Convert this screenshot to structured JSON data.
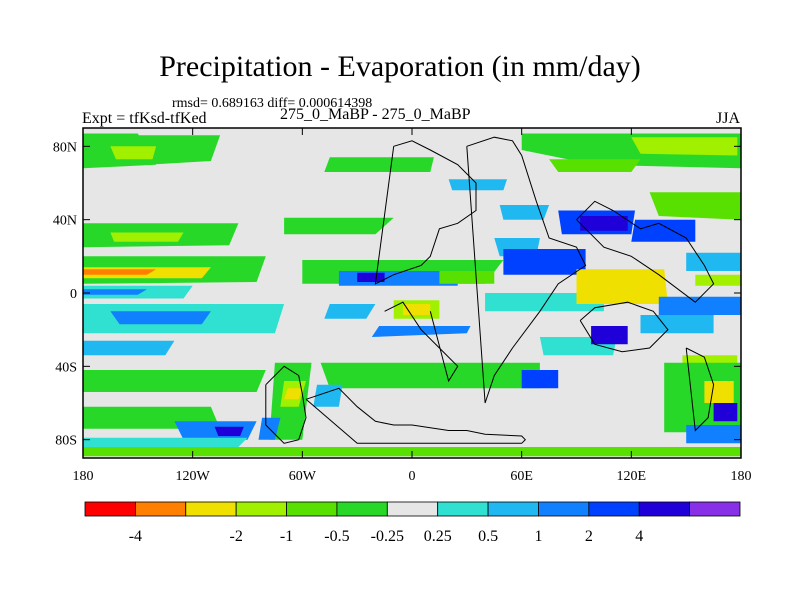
{
  "chart_data": {
    "type": "heatmap",
    "title": "Precipitation - Evaporation (in mm/day)",
    "stats": "rmsd= 0.689163 diff= 0.000614398",
    "left_label": "Expt = tfKsd-tfKed",
    "center_label": "275_0_MaBP - 275_0_MaBP",
    "right_label": "JJA",
    "xlim": [
      -180,
      180
    ],
    "ylim": [
      -90,
      90
    ],
    "x_ticks": [
      {
        "value": -180,
        "label": "180"
      },
      {
        "value": -120,
        "label": "120W"
      },
      {
        "value": -60,
        "label": "60W"
      },
      {
        "value": 0,
        "label": "0"
      },
      {
        "value": 60,
        "label": "60E"
      },
      {
        "value": 120,
        "label": "120E"
      },
      {
        "value": 180,
        "label": "180"
      }
    ],
    "y_ticks": [
      {
        "value": 80,
        "label": "80N"
      },
      {
        "value": 40,
        "label": "40N"
      },
      {
        "value": 0,
        "label": "0"
      },
      {
        "value": -40,
        "label": "40S"
      },
      {
        "value": -80,
        "label": "80S"
      }
    ],
    "colorbar": {
      "colors": [
        "#ff0000",
        "#ff7f00",
        "#f0e000",
        "#a0f000",
        "#58e000",
        "#28d828",
        "#e6e6e6",
        "#30e0d0",
        "#20b8f0",
        "#1080ff",
        "#0040ff",
        "#2000d8",
        "#8830e8"
      ],
      "boundaries": [
        "-4",
        "-2",
        "-1",
        "-0.5",
        "-0.25",
        "0.25",
        "0.5",
        "1",
        "2",
        "4"
      ],
      "boundary_positions": [
        1,
        3,
        4,
        5,
        6,
        7,
        8,
        9,
        10,
        11
      ]
    },
    "regions": [
      {
        "level": 5,
        "lon": [
          -180,
          -150,
          -140,
          -180
        ],
        "lat": [
          87,
          87,
          70,
          68
        ]
      },
      {
        "level": 5,
        "lon": [
          -150,
          -105,
          -110,
          -145
        ],
        "lat": [
          86,
          86,
          72,
          70
        ]
      },
      {
        "level": 3,
        "lon": [
          -165,
          -140,
          -142,
          -162
        ],
        "lat": [
          80,
          80,
          73,
          73
        ]
      },
      {
        "level": 5,
        "lon": [
          60,
          180,
          180,
          100,
          60
        ],
        "lat": [
          87,
          87,
          68,
          70,
          78
        ]
      },
      {
        "level": 3,
        "lon": [
          120,
          178,
          178,
          125
        ],
        "lat": [
          85,
          85,
          75,
          76
        ]
      },
      {
        "level": 4,
        "lon": [
          75,
          125,
          120,
          80
        ],
        "lat": [
          73,
          73,
          66,
          66
        ]
      },
      {
        "level": 4,
        "lon": [
          130,
          180,
          180,
          135
        ],
        "lat": [
          55,
          55,
          40,
          42
        ]
      },
      {
        "level": 5,
        "lon": [
          -180,
          -95,
          -100,
          -180
        ],
        "lat": [
          38,
          38,
          26,
          25
        ]
      },
      {
        "level": 3,
        "lon": [
          -165,
          -125,
          -128,
          -163
        ],
        "lat": [
          33,
          33,
          28,
          28
        ]
      },
      {
        "level": 5,
        "lon": [
          -180,
          -80,
          -85,
          -180
        ],
        "lat": [
          20,
          20,
          6,
          5
        ]
      },
      {
        "level": 2,
        "lon": [
          -180,
          -110,
          -115,
          -180
        ],
        "lat": [
          14,
          14,
          8,
          8
        ]
      },
      {
        "level": 1,
        "lon": [
          -180,
          -140,
          -145,
          -180
        ],
        "lat": [
          13,
          13,
          10,
          10
        ]
      },
      {
        "level": 7,
        "lon": [
          -180,
          -120,
          -125,
          -180
        ],
        "lat": [
          4,
          4,
          -3,
          -3
        ]
      },
      {
        "level": 9,
        "lon": [
          -180,
          -145,
          -150,
          -180
        ],
        "lat": [
          2,
          2,
          -1,
          -1
        ]
      },
      {
        "level": 7,
        "lon": [
          -180,
          -70,
          -75,
          -180
        ],
        "lat": [
          -6,
          -6,
          -22,
          -22
        ]
      },
      {
        "level": 9,
        "lon": [
          -165,
          -110,
          -115,
          -160
        ],
        "lat": [
          -10,
          -10,
          -17,
          -17
        ]
      },
      {
        "level": 8,
        "lon": [
          -180,
          -130,
          -135,
          -180
        ],
        "lat": [
          -26,
          -26,
          -34,
          -34
        ]
      },
      {
        "level": 5,
        "lon": [
          -180,
          -80,
          -85,
          -180
        ],
        "lat": [
          -42,
          -42,
          -54,
          -54
        ]
      },
      {
        "level": 5,
        "lon": [
          -180,
          -110,
          -105,
          -180
        ],
        "lat": [
          -62,
          -62,
          -74,
          -74
        ]
      },
      {
        "level": 9,
        "lon": [
          -130,
          -85,
          -90,
          -125
        ],
        "lat": [
          -70,
          -70,
          -80,
          -80
        ]
      },
      {
        "level": 11,
        "lon": [
          -108,
          -92,
          -94,
          -106
        ],
        "lat": [
          -73,
          -73,
          -78,
          -78
        ]
      },
      {
        "level": 7,
        "lon": [
          -180,
          -90,
          -95,
          -180
        ],
        "lat": [
          -79,
          -79,
          -84,
          -84
        ]
      },
      {
        "level": 5,
        "lon": [
          -75,
          -55,
          -60,
          -78
        ],
        "lat": [
          -38,
          -38,
          -80,
          -80
        ]
      },
      {
        "level": 3,
        "lon": [
          -70,
          -58,
          -62,
          -72
        ],
        "lat": [
          -48,
          -48,
          -62,
          -62
        ]
      },
      {
        "level": 2,
        "lon": [
          -68,
          -60,
          -62,
          -70
        ],
        "lat": [
          -52,
          -52,
          -58,
          -58
        ]
      },
      {
        "level": 9,
        "lon": [
          -82,
          -72,
          -75,
          -84
        ],
        "lat": [
          -68,
          -68,
          -80,
          -80
        ]
      },
      {
        "level": 5,
        "lon": [
          -50,
          70,
          70,
          -45
        ],
        "lat": [
          -38,
          -38,
          -52,
          -52
        ]
      },
      {
        "level": 8,
        "lon": [
          -52,
          -38,
          -40,
          -54
        ],
        "lat": [
          -50,
          -50,
          -62,
          -62
        ]
      },
      {
        "level": 5,
        "lon": [
          -70,
          -10,
          -20,
          -70
        ],
        "lat": [
          41,
          41,
          32,
          32
        ]
      },
      {
        "level": 8,
        "lon": [
          -45,
          -20,
          -25,
          -48
        ],
        "lat": [
          -6,
          -6,
          -14,
          -14
        ]
      },
      {
        "level": 5,
        "lon": [
          -60,
          50,
          40,
          -60
        ],
        "lat": [
          18,
          18,
          5,
          5
        ]
      },
      {
        "level": 9,
        "lon": [
          -40,
          25,
          25,
          -40
        ],
        "lat": [
          12,
          12,
          4,
          4
        ]
      },
      {
        "level": 11,
        "lon": [
          -30,
          -15,
          -15,
          -30
        ],
        "lat": [
          11,
          11,
          6,
          6
        ]
      },
      {
        "level": 9,
        "lon": [
          -18,
          32,
          30,
          -22
        ],
        "lat": [
          -18,
          -18,
          -22,
          -24
        ]
      },
      {
        "level": 3,
        "lon": [
          -10,
          15,
          15,
          -10
        ],
        "lat": [
          -4,
          -4,
          -14,
          -14
        ]
      },
      {
        "level": 2,
        "lon": [
          -5,
          10,
          10,
          -5
        ],
        "lat": [
          -6,
          -6,
          -12,
          -12
        ]
      },
      {
        "level": 8,
        "lon": [
          48,
          75,
          72,
          50
        ],
        "lat": [
          48,
          48,
          40,
          40
        ]
      },
      {
        "level": 8,
        "lon": [
          20,
          52,
          50,
          22
        ],
        "lat": [
          62,
          62,
          56,
          56
        ]
      },
      {
        "level": 5,
        "lon": [
          -45,
          12,
          10,
          -48
        ],
        "lat": [
          74,
          74,
          66,
          66
        ]
      },
      {
        "level": 4,
        "lon": [
          15,
          45,
          45,
          15
        ],
        "lat": [
          12,
          12,
          5,
          5
        ]
      },
      {
        "level": 8,
        "lon": [
          45,
          70,
          68,
          48
        ],
        "lat": [
          30,
          30,
          20,
          20
        ]
      },
      {
        "level": 10,
        "lon": [
          50,
          95,
          95,
          50
        ],
        "lat": [
          24,
          24,
          10,
          10
        ]
      },
      {
        "level": 10,
        "lon": [
          80,
          122,
          120,
          82
        ],
        "lat": [
          45,
          45,
          32,
          32
        ]
      },
      {
        "level": 11,
        "lon": [
          92,
          118,
          118,
          92
        ],
        "lat": [
          42,
          42,
          34,
          34
        ]
      },
      {
        "level": 10,
        "lon": [
          122,
          155,
          155,
          120
        ],
        "lat": [
          40,
          40,
          28,
          28
        ]
      },
      {
        "level": 7,
        "lon": [
          40,
          105,
          105,
          40
        ],
        "lat": [
          0,
          0,
          -10,
          -10
        ]
      },
      {
        "level": 8,
        "lon": [
          150,
          180,
          180,
          150
        ],
        "lat": [
          22,
          22,
          12,
          12
        ]
      },
      {
        "level": 3,
        "lon": [
          155,
          180,
          180,
          155
        ],
        "lat": [
          10,
          10,
          4,
          4
        ]
      },
      {
        "level": 1,
        "lon": [
          95,
          135,
          135,
          95
        ],
        "lat": [
          10,
          10,
          -4,
          -4
        ]
      },
      {
        "level": 2,
        "lon": [
          90,
          138,
          140,
          90
        ],
        "lat": [
          13,
          13,
          -6,
          -6
        ]
      },
      {
        "level": 9,
        "lon": [
          135,
          180,
          180,
          135
        ],
        "lat": [
          -2,
          -2,
          -12,
          -12
        ]
      },
      {
        "level": 7,
        "lon": [
          70,
          112,
          110,
          72
        ],
        "lat": [
          -24,
          -24,
          -34,
          -34
        ]
      },
      {
        "level": 11,
        "lon": [
          98,
          118,
          118,
          98
        ],
        "lat": [
          -18,
          -18,
          -28,
          -28
        ]
      },
      {
        "level": 10,
        "lon": [
          60,
          80,
          80,
          60
        ],
        "lat": [
          -42,
          -42,
          -52,
          -52
        ]
      },
      {
        "level": 8,
        "lon": [
          125,
          165,
          165,
          125
        ],
        "lat": [
          -12,
          -12,
          -22,
          -22
        ]
      },
      {
        "level": 3,
        "lon": [
          148,
          178,
          178,
          148
        ],
        "lat": [
          -34,
          -34,
          -60,
          -60
        ]
      },
      {
        "level": 5,
        "lon": [
          138,
          180,
          180,
          138
        ],
        "lat": [
          -38,
          -38,
          -76,
          -76
        ]
      },
      {
        "level": 2,
        "lon": [
          160,
          176,
          176,
          160
        ],
        "lat": [
          -48,
          -48,
          -60,
          -60
        ]
      },
      {
        "level": 11,
        "lon": [
          165,
          178,
          178,
          165
        ],
        "lat": [
          -60,
          -60,
          -70,
          -70
        ]
      },
      {
        "level": 9,
        "lon": [
          150,
          180,
          180,
          150
        ],
        "lat": [
          -72,
          -72,
          -82,
          -82
        ]
      },
      {
        "level": 4,
        "lon": [
          -180,
          180,
          180,
          -180
        ],
        "lat": [
          -84,
          -84,
          -89,
          -89
        ]
      }
    ],
    "coastlines": [
      {
        "lon": [
          -10,
          0,
          10,
          25,
          35,
          35,
          25,
          15,
          10,
          5,
          -10,
          -20,
          -10
        ],
        "lat": [
          80,
          83,
          78,
          70,
          60,
          45,
          38,
          35,
          20,
          15,
          10,
          5,
          80
        ]
      },
      {
        "lon": [
          -15,
          -5,
          5,
          15,
          25,
          20,
          10
        ],
        "lat": [
          -10,
          -5,
          -20,
          -30,
          -40,
          -48,
          -10
        ]
      },
      {
        "lon": [
          30,
          45,
          55,
          60,
          68,
          75,
          90,
          95,
          80,
          70,
          55,
          45,
          40,
          30
        ],
        "lat": [
          80,
          85,
          83,
          75,
          50,
          30,
          25,
          15,
          5,
          -10,
          -30,
          -45,
          -60,
          80
        ]
      },
      {
        "lon": [
          90,
          100,
          110,
          125,
          135,
          150,
          160,
          165,
          155,
          135,
          120,
          105,
          95,
          90
        ],
        "lat": [
          40,
          50,
          45,
          35,
          38,
          30,
          15,
          5,
          -5,
          10,
          20,
          25,
          35,
          40
        ]
      },
      {
        "lon": [
          92,
          100,
          118,
          132,
          140,
          130,
          115,
          100,
          92
        ],
        "lat": [
          -15,
          -8,
          -5,
          -10,
          -20,
          -30,
          -32,
          -28,
          -15
        ]
      },
      {
        "lon": [
          150,
          160,
          165,
          162,
          155,
          150
        ],
        "lat": [
          -30,
          -35,
          -50,
          -68,
          -75,
          -30
        ]
      },
      {
        "lon": [
          -80,
          -70,
          -62,
          -60,
          -58,
          -62,
          -70,
          -80,
          -80
        ],
        "lat": [
          -50,
          -40,
          -45,
          -55,
          -68,
          -80,
          -82,
          -72,
          -50
        ]
      },
      {
        "lon": [
          -58,
          -40,
          -30,
          -20,
          -10,
          0,
          20,
          30,
          40,
          60,
          62,
          60,
          45,
          -30,
          -58
        ],
        "lat": [
          -58,
          -52,
          -62,
          -70,
          -72,
          -72,
          -75,
          -75,
          -77,
          -78,
          -80,
          -82,
          -82,
          -82,
          -58
        ]
      }
    ]
  }
}
